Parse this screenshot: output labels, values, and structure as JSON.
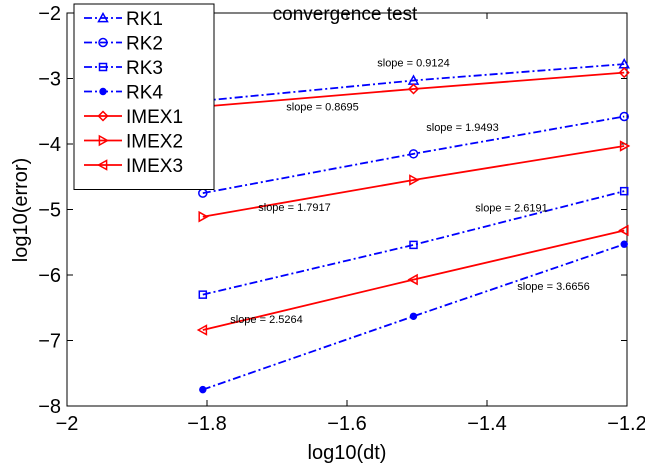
{
  "chart_data": {
    "type": "line",
    "title": "convergence test",
    "xlabel": "log10(dt)",
    "ylabel": "log10(error)",
    "xlim": [
      -2,
      -1.2
    ],
    "ylim": [
      -8,
      -2
    ],
    "xticks": [
      -2,
      -1.8,
      -1.6,
      -1.4,
      -1.2
    ],
    "xtick_labels": [
      "−2",
      "−1.8",
      "−1.6",
      "−1.4",
      "−1.2"
    ],
    "yticks": [
      -8,
      -7,
      -6,
      -5,
      -4,
      -3,
      -2
    ],
    "ytick_labels": [
      "−8",
      "−7",
      "−6",
      "−5",
      "−4",
      "−3",
      "−2"
    ],
    "grid": false,
    "legend_position": "top-left",
    "x": [
      -1.806,
      -1.505,
      -1.204
    ],
    "series": [
      {
        "name": "RK1",
        "values": [
          -3.34,
          -3.03,
          -2.78
        ],
        "color": "#0000ff",
        "linestyle": "dashdot",
        "marker": "triangle-up"
      },
      {
        "name": "RK2",
        "values": [
          -4.75,
          -4.15,
          -3.58
        ],
        "color": "#0000ff",
        "linestyle": "dashdot",
        "marker": "circle-open"
      },
      {
        "name": "RK3",
        "values": [
          -6.3,
          -5.54,
          -4.72
        ],
        "color": "#0000ff",
        "linestyle": "dashdot",
        "marker": "square-open"
      },
      {
        "name": "RK4",
        "values": [
          -7.75,
          -6.63,
          -5.53
        ],
        "color": "#0000ff",
        "linestyle": "dashdot",
        "marker": "circle-filled"
      },
      {
        "name": "IMEX1",
        "values": [
          -3.43,
          -3.16,
          -2.91
        ],
        "color": "#ff0000",
        "linestyle": "solid",
        "marker": "diamond-open"
      },
      {
        "name": "IMEX2",
        "values": [
          -5.11,
          -4.55,
          -4.03
        ],
        "color": "#ff0000",
        "linestyle": "solid",
        "marker": "triangle-right"
      },
      {
        "name": "IMEX3",
        "values": [
          -6.84,
          -6.07,
          -5.32
        ],
        "color": "#ff0000",
        "linestyle": "solid",
        "marker": "triangle-left"
      }
    ],
    "annotations": [
      {
        "text": "slope = 0.9124",
        "x": -1.505,
        "y": -2.82
      },
      {
        "text": "slope = 0.8695",
        "x": -1.635,
        "y": -3.49
      },
      {
        "text": "slope = 1.9493",
        "x": -1.435,
        "y": -3.8
      },
      {
        "text": "slope = 1.7917",
        "x": -1.675,
        "y": -5.02
      },
      {
        "text": "slope = 2.6191",
        "x": -1.365,
        "y": -5.03
      },
      {
        "text": "slope = 2.5264",
        "x": -1.715,
        "y": -6.73
      },
      {
        "text": "slope = 3.6656",
        "x": -1.305,
        "y": -6.23
      }
    ]
  }
}
